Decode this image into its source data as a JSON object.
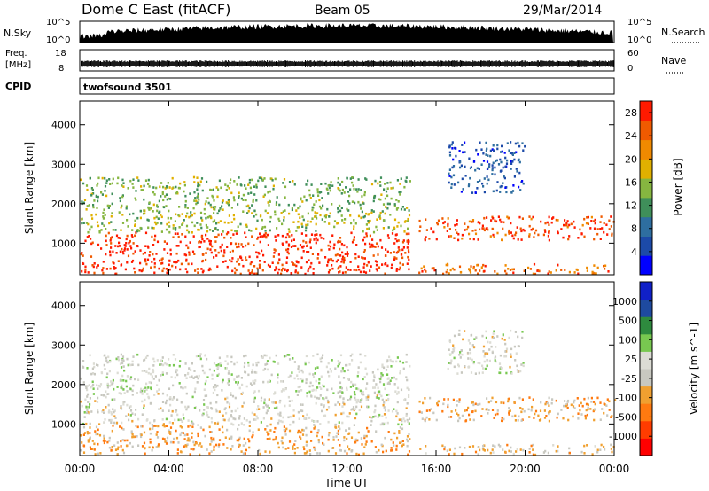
{
  "header": {
    "station": "Dome C East (fitACF)",
    "beam": "Beam 05",
    "date": "29/Mar/2014"
  },
  "noise_panel": {
    "left_label": "N.Sky",
    "right_label": "N.Search",
    "left_ticks": [
      "10^5",
      "10^0"
    ],
    "right_ticks": [
      "10^5",
      "10^0"
    ]
  },
  "freq_panel": {
    "left_label_line1": "Freq.",
    "left_label_line2": "[MHz]",
    "right_label": "Nave",
    "left_ticks": [
      "18",
      "8"
    ],
    "right_ticks": [
      "60",
      "0"
    ]
  },
  "cpid_panel": {
    "label": "CPID",
    "value": "twofsound 3501"
  },
  "x_axis": {
    "title": "Time UT",
    "ticks": [
      "00:00",
      "04:00",
      "08:00",
      "12:00",
      "16:00",
      "20:00",
      "00:00"
    ]
  },
  "colors": {
    "power_scale": [
      "#0000ff",
      "#1c4aa8",
      "#2e6ea0",
      "#3f8f5a",
      "#86b640",
      "#e0b000",
      "#f08a00",
      "#f05a00",
      "#ff1a00"
    ],
    "velocity_scale": [
      "#ff0000",
      "#ff3c00",
      "#ff7a10",
      "#f0a030",
      "#c8c8c0",
      "#dcdcd4",
      "#78c850",
      "#2e8a3e",
      "#1e4aa0",
      "#1020c8"
    ]
  },
  "chart_data": [
    {
      "type": "heatmap",
      "title": "",
      "xlabel": "",
      "ylabel": "Slant Range [km]",
      "xlim": [
        0,
        24
      ],
      "ylim": [
        200,
        4600
      ],
      "y_ticks": [
        "1000",
        "2000",
        "3000",
        "4000"
      ],
      "colorbar": {
        "label": "Power [dB]",
        "ticks": [
          "28",
          "24",
          "20",
          "16",
          "12",
          "8",
          "4"
        ],
        "range": [
          0,
          30
        ]
      },
      "regions": [
        {
          "t0": 0,
          "t1": 14.8,
          "r0": 250,
          "r1": 1300,
          "value": 28
        },
        {
          "t0": 0,
          "t1": 14.8,
          "r0": 1300,
          "r1": 1800,
          "value": 16
        },
        {
          "t0": 0,
          "t1": 14.8,
          "r0": 1800,
          "r1": 2700,
          "value": 14
        },
        {
          "t0": 15.2,
          "t1": 24,
          "r0": 1100,
          "r1": 1700,
          "value": 26
        },
        {
          "t0": 15.2,
          "t1": 24,
          "r0": 250,
          "r1": 500,
          "value": 24
        },
        {
          "t0": 16.5,
          "t1": 20,
          "r0": 2300,
          "r1": 3600,
          "value": 6
        }
      ]
    },
    {
      "type": "heatmap",
      "title": "",
      "xlabel": "Time UT",
      "ylabel": "Slant Range [km]",
      "xlim": [
        0,
        24
      ],
      "ylim": [
        200,
        4600
      ],
      "y_ticks": [
        "1000",
        "2000",
        "3000",
        "4000"
      ],
      "colorbar": {
        "label": "Velocity [m s^-1]",
        "ticks": [
          "1000",
          "500",
          "100",
          "25",
          "-25",
          "-100",
          "-500",
          "-1000"
        ],
        "range": [
          -1000,
          1000
        ]
      },
      "regions": [
        {
          "t0": 0,
          "t1": 14.8,
          "r0": 250,
          "r1": 1000,
          "value": -300
        },
        {
          "t0": 0,
          "t1": 14.8,
          "r0": 1000,
          "r1": 1800,
          "value": 0
        },
        {
          "t0": 0,
          "t1": 14.8,
          "r0": 1800,
          "r1": 2800,
          "value": 60
        },
        {
          "t0": 15.2,
          "t1": 24,
          "r0": 1100,
          "r1": 1700,
          "value": -300
        },
        {
          "t0": 15.2,
          "t1": 24,
          "r0": 250,
          "r1": 500,
          "value": -200
        },
        {
          "t0": 16.5,
          "t1": 20,
          "r0": 2300,
          "r1": 3400,
          "value": 0
        }
      ]
    }
  ]
}
